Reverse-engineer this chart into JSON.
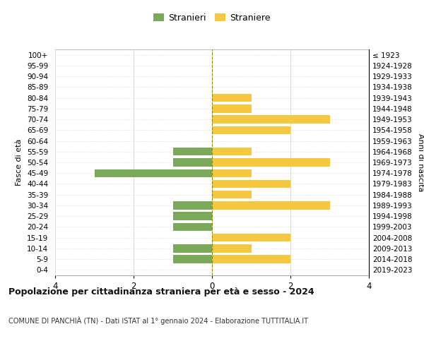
{
  "age_groups": [
    "100+",
    "95-99",
    "90-94",
    "85-89",
    "80-84",
    "75-79",
    "70-74",
    "65-69",
    "60-64",
    "55-59",
    "50-54",
    "45-49",
    "40-44",
    "35-39",
    "30-34",
    "25-29",
    "20-24",
    "15-19",
    "10-14",
    "5-9",
    "0-4"
  ],
  "birth_years": [
    "≤ 1923",
    "1924-1928",
    "1929-1933",
    "1934-1938",
    "1939-1943",
    "1944-1948",
    "1949-1953",
    "1954-1958",
    "1959-1963",
    "1964-1968",
    "1969-1973",
    "1974-1978",
    "1979-1983",
    "1984-1988",
    "1989-1993",
    "1994-1998",
    "1999-2003",
    "2004-2008",
    "2009-2013",
    "2014-2018",
    "2019-2023"
  ],
  "males": [
    0,
    0,
    0,
    0,
    0,
    0,
    0,
    0,
    0,
    1,
    1,
    3,
    0,
    0,
    1,
    1,
    1,
    0,
    1,
    1,
    0
  ],
  "females": [
    0,
    0,
    0,
    0,
    1,
    1,
    3,
    2,
    0,
    1,
    3,
    1,
    2,
    1,
    3,
    0,
    0,
    2,
    1,
    2,
    0
  ],
  "male_color": "#7aaa59",
  "female_color": "#f5c842",
  "xlim": 4,
  "title": "Popolazione per cittadinanza straniera per età e sesso - 2024",
  "subtitle": "COMUNE DI PANCHIÀ (TN) - Dati ISTAT al 1° gennaio 2024 - Elaborazione TUTTITALIA.IT",
  "legend_male": "Stranieri",
  "legend_female": "Straniere",
  "ylabel_left": "Fasce di età",
  "ylabel_right": "Anni di nascita"
}
